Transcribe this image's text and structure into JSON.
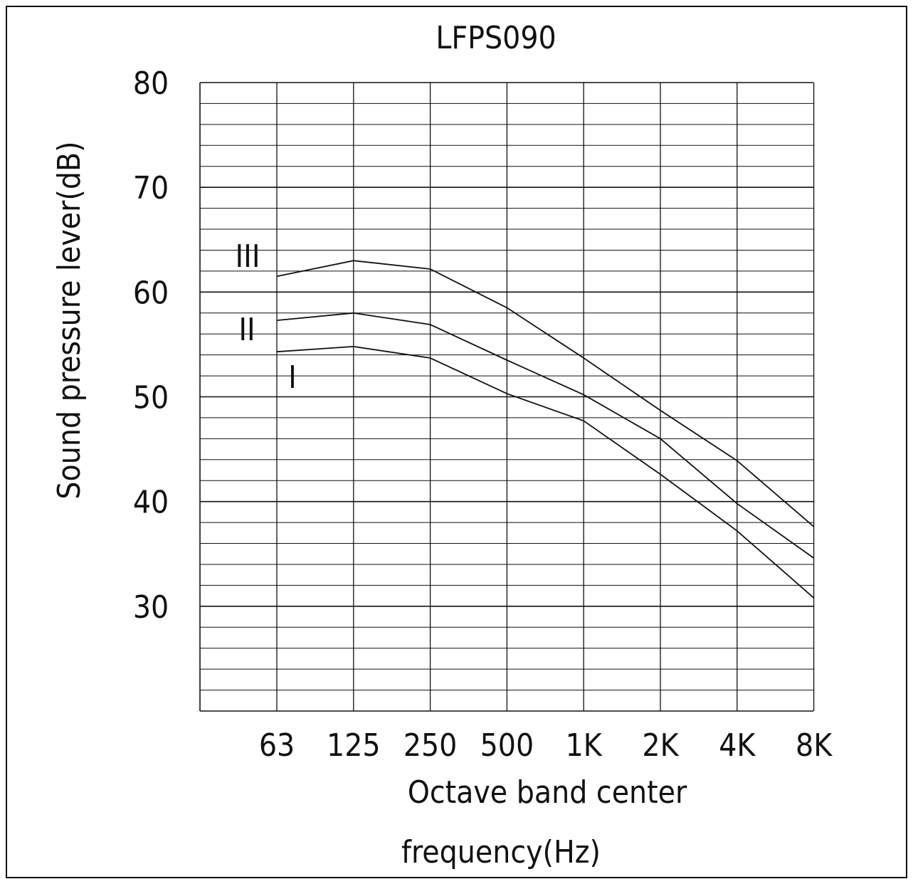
{
  "chart_data": {
    "type": "line",
    "title": "LFPS090",
    "xlabel_lines": [
      "Octave band center",
      "frequency(Hz)"
    ],
    "ylabel": "Sound pressure lever(dB)",
    "categories": [
      "63",
      "125",
      "250",
      "500",
      "1K",
      "2K",
      "4K",
      "8K"
    ],
    "y_ticks": [
      "80",
      "70",
      "60",
      "50",
      "40",
      "30"
    ],
    "ylim": [
      20,
      80
    ],
    "grid": true,
    "series": [
      {
        "name": "III",
        "values": [
          61.5,
          63.0,
          62.2,
          58.5,
          53.7,
          48.7,
          43.9,
          37.6
        ]
      },
      {
        "name": "II",
        "values": [
          57.3,
          58.0,
          56.9,
          53.5,
          50.2,
          46.0,
          39.8,
          34.6
        ]
      },
      {
        "name": "I",
        "values": [
          54.3,
          54.8,
          53.7,
          50.3,
          47.7,
          42.6,
          37.2,
          30.8
        ]
      }
    ]
  }
}
